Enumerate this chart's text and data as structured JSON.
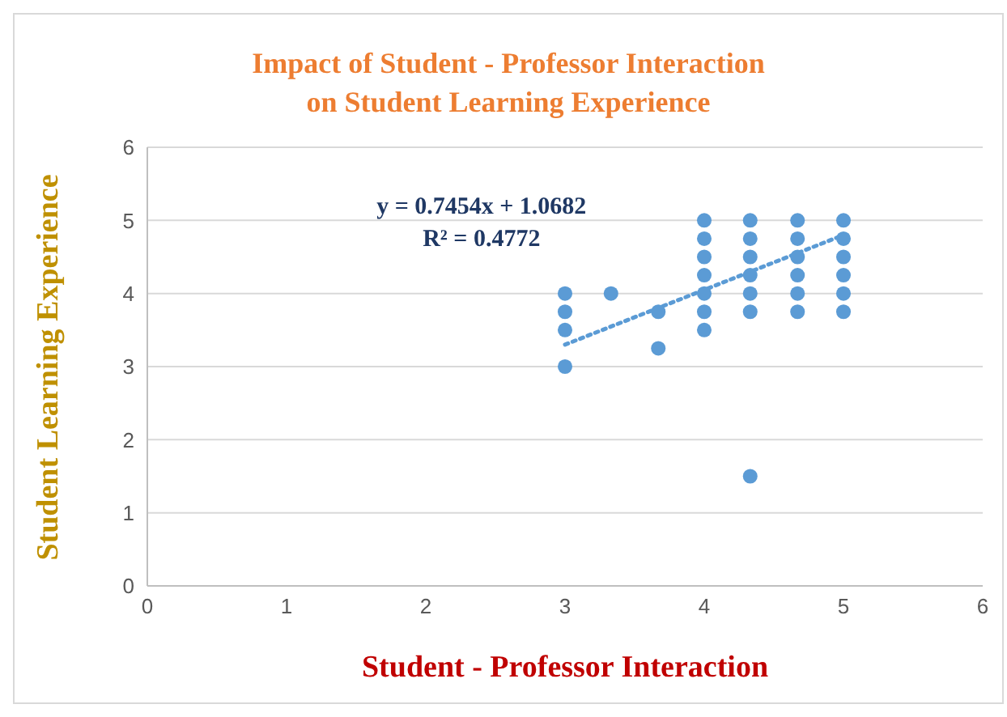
{
  "chart_data": {
    "type": "scatter",
    "title": "Impact of Student - Professor Interaction on Student Learning Experience",
    "xlabel": "Student - Professor Interaction",
    "ylabel": "Student Learning Experience",
    "annotations": [
      "y = 0.7454x + 1.0682",
      "R² = 0.4772"
    ],
    "xlim": [
      0,
      6
    ],
    "xticks": [
      0,
      1,
      2,
      3,
      4,
      5,
      6
    ],
    "ylim": [
      0,
      6
    ],
    "yticks": [
      0,
      1,
      2,
      3,
      4,
      5,
      6
    ],
    "grid": "y",
    "legend": false,
    "marker": "circle",
    "series": [
      {
        "color": "#5b9bd5",
        "x": [
          3,
          3,
          3,
          3,
          3.33,
          3.67,
          3.67,
          4,
          4,
          4,
          4,
          4,
          4,
          4,
          4.33,
          4.33,
          4.33,
          4.33,
          4.33,
          4.33,
          4.33,
          4.67,
          4.67,
          4.67,
          4.67,
          4.67,
          4.67,
          5,
          5,
          5,
          5,
          5,
          5
        ],
        "values": [
          4,
          3.75,
          3.5,
          3,
          4,
          3.75,
          3.25,
          5,
          4.75,
          4.5,
          4.25,
          4,
          3.75,
          3.5,
          5,
          4.75,
          4.5,
          4.25,
          4,
          3.75,
          1.5,
          5,
          4.75,
          4.5,
          4.25,
          4,
          3.75,
          5,
          4.75,
          4.5,
          4.25,
          4,
          3.75
        ]
      },
      {
        "type": "line",
        "color": "#5b9bd5",
        "line_style": "dotted",
        "marker": "none",
        "x": [
          3,
          5
        ],
        "values": [
          3.3,
          4.8
        ]
      }
    ]
  }
}
